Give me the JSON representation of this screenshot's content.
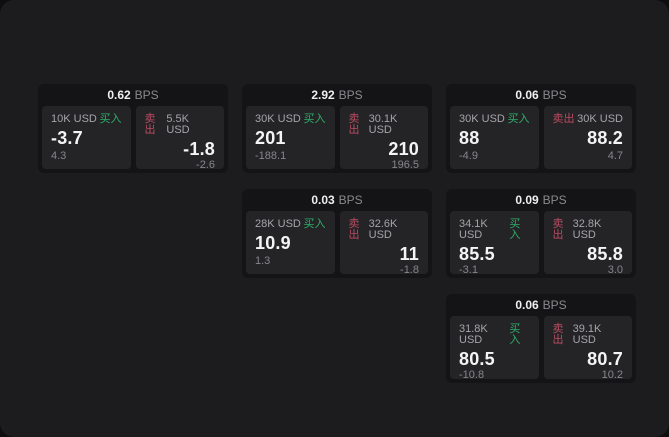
{
  "labels": {
    "buy": "买入",
    "sell": "卖出",
    "bps_unit": "BPS"
  },
  "colors": {
    "buy": "#2eae68",
    "sell": "#bb4a60",
    "window_background": "#1c1c1e",
    "card_background": "#141416",
    "panel_background": "#242427"
  },
  "cards": [
    {
      "bps": "0.62",
      "buy": {
        "amount": "10K USD",
        "value": "-3.7",
        "sub": "4.3"
      },
      "sell": {
        "amount": "5.5K USD",
        "value": "-1.8",
        "sub": "-2.6"
      }
    },
    {
      "bps": "2.92",
      "buy": {
        "amount": "30K USD",
        "value": "201",
        "sub": "-188.1"
      },
      "sell": {
        "amount": "30.1K USD",
        "value": "210",
        "sub": "196.5"
      }
    },
    {
      "bps": "0.06",
      "buy": {
        "amount": "30K USD",
        "value": "88",
        "sub": "-4.9"
      },
      "sell": {
        "amount": "30K USD",
        "value": "88.2",
        "sub": "4.7"
      }
    },
    {
      "bps": "0.03",
      "buy": {
        "amount": "28K USD",
        "value": "10.9",
        "sub": "1.3"
      },
      "sell": {
        "amount": "32.6K USD",
        "value": "11",
        "sub": "-1.8"
      }
    },
    {
      "bps": "0.09",
      "buy": {
        "amount": "34.1K USD",
        "value": "85.5",
        "sub": "-3.1"
      },
      "sell": {
        "amount": "32.8K USD",
        "value": "85.8",
        "sub": "3.0"
      }
    },
    {
      "bps": "0.06",
      "buy": {
        "amount": "31.8K USD",
        "value": "80.5",
        "sub": "-10.8"
      },
      "sell": {
        "amount": "39.1K USD",
        "value": "80.7",
        "sub": "10.2"
      }
    }
  ]
}
